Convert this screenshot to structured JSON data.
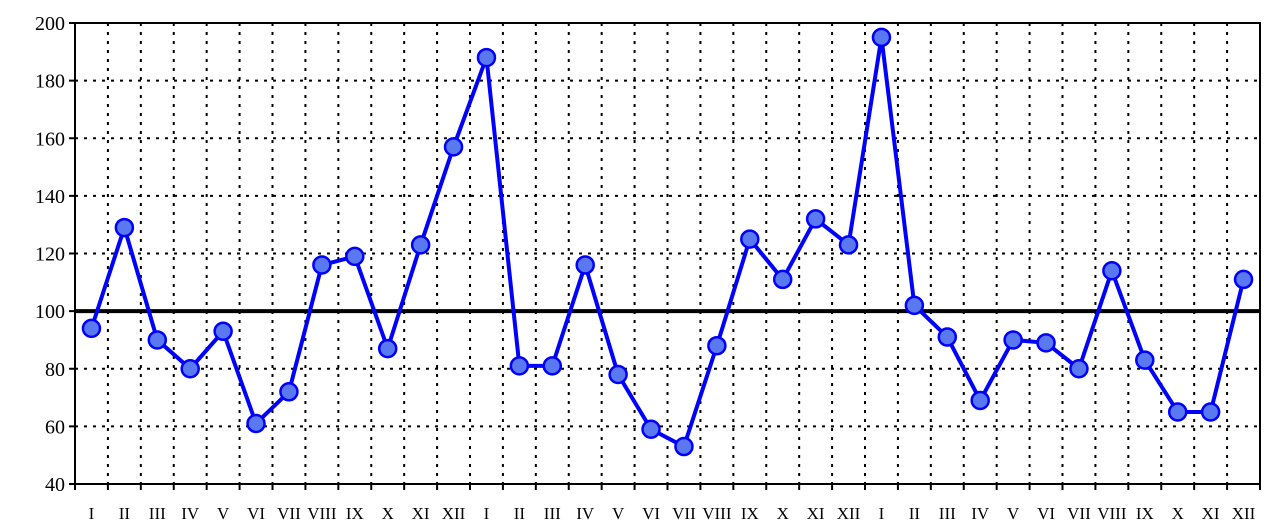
{
  "chart_data": {
    "type": "line",
    "title": "",
    "xlabel": "",
    "ylabel": "",
    "ylim": [
      40,
      200
    ],
    "yticks": [
      40,
      60,
      80,
      100,
      120,
      140,
      160,
      180,
      200
    ],
    "reference_line": 100,
    "grid": true,
    "categories": [
      "I",
      "II",
      "III",
      "IV",
      "V",
      "VI",
      "VII",
      "VIII",
      "IX",
      "X",
      "XI",
      "XII",
      "I",
      "II",
      "III",
      "IV",
      "V",
      "VI",
      "VII",
      "VIII",
      "IX",
      "X",
      "XI",
      "XII",
      "I",
      "II",
      "III",
      "IV",
      "V",
      "VI",
      "VII",
      "VIII",
      "IX",
      "X",
      "XI",
      "XII"
    ],
    "series": [
      {
        "color": "#0000ff",
        "marker_color": "#5a78f0",
        "values": [
          94,
          129,
          90,
          80,
          93,
          61,
          72,
          116,
          119,
          87,
          123,
          157,
          188,
          81,
          81,
          116,
          78,
          59,
          53,
          88,
          125,
          111,
          132,
          123,
          195,
          102,
          91,
          69,
          90,
          89,
          80,
          114,
          83,
          65,
          65,
          111
        ]
      }
    ]
  }
}
